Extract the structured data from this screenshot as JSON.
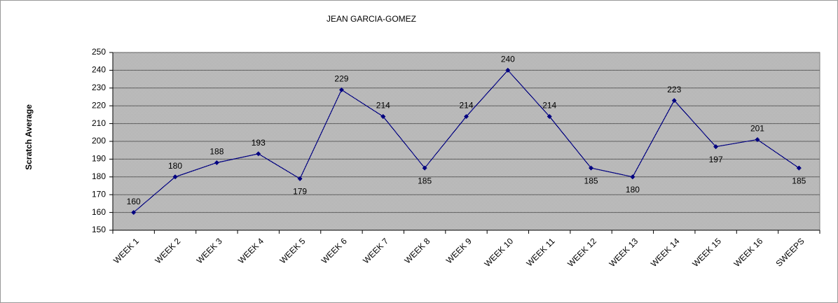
{
  "chart_data": {
    "type": "line",
    "title": "JEAN GARCIA-GOMEZ",
    "y_label": "Scratch Average",
    "categories": [
      "WEEK 1",
      "WEEK 2",
      "WEEK 3",
      "WEEK 4",
      "WEEK 5",
      "WEEK 6",
      "WEEK 7",
      "WEEK 8",
      "WEEK 9",
      "WEEK 10",
      "WEEK 11",
      "WEEK 12",
      "WEEK 13",
      "WEEK 14",
      "WEEK 15",
      "WEEK 16",
      "SWEEPS"
    ],
    "values": [
      160,
      180,
      188,
      193,
      179,
      229,
      214,
      185,
      214,
      240,
      214,
      185,
      180,
      223,
      197,
      201,
      185
    ],
    "color": "#000080",
    "ylim": [
      150,
      250
    ],
    "yticks": [
      150,
      160,
      170,
      180,
      190,
      200,
      210,
      220,
      230,
      240,
      250
    ],
    "grid": true
  }
}
